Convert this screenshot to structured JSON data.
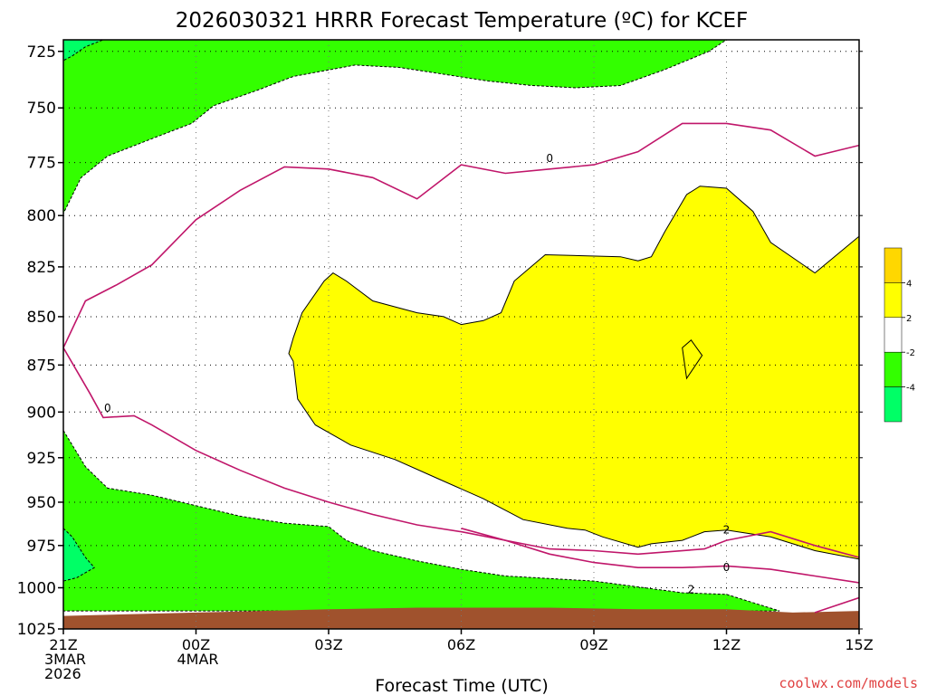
{
  "chart_data": {
    "type": "contour",
    "title": "2026030321 HRRR Forecast Temperature (ºC) for KCEF",
    "xlabel": "Forecast Time (UTC)",
    "ylabel": "",
    "credit": "coolwx.com/models",
    "y_scale": "log",
    "ylim": [
      1025,
      720
    ],
    "xlim": [
      0,
      18
    ],
    "y_ticks": [
      725,
      750,
      775,
      800,
      825,
      850,
      875,
      900,
      925,
      950,
      975,
      1000,
      1025
    ],
    "x_ticks": [
      {
        "x": 0,
        "lines": [
          "21Z",
          "3MAR",
          "2026"
        ]
      },
      {
        "x": 3,
        "lines": [
          "00Z",
          "4MAR"
        ]
      },
      {
        "x": 6,
        "lines": [
          "03Z"
        ]
      },
      {
        "x": 9,
        "lines": [
          "06Z"
        ]
      },
      {
        "x": 12,
        "lines": [
          "09Z"
        ]
      },
      {
        "x": 15,
        "lines": [
          "12Z"
        ]
      },
      {
        "x": 18,
        "lines": [
          "15Z"
        ]
      }
    ],
    "grid": true,
    "legend": {
      "placement": "right",
      "labels": [
        "4",
        "2",
        "-2",
        "-4"
      ],
      "colors": [
        "#ffd700",
        "#ffff00",
        "#ffffff",
        "#33ff00",
        "#00ff66"
      ]
    },
    "colors": {
      "cold_fill": "#33ff00",
      "colder_fill": "#00ff66",
      "warm_fill": "#ffff00",
      "ground": "#a0522d",
      "zero_line": "#c0166a"
    },
    "regions": [
      {
        "name": "cold-top",
        "fill": "#33ff00",
        "dashed": true,
        "points": [
          [
            0,
            720
          ],
          [
            15.0,
            720
          ],
          [
            14.6,
            725
          ],
          [
            13.6,
            733
          ],
          [
            12.6,
            740
          ],
          [
            11.6,
            741
          ],
          [
            10.6,
            740
          ],
          [
            9.6,
            738
          ],
          [
            8.6,
            735
          ],
          [
            7.6,
            732
          ],
          [
            6.6,
            731
          ],
          [
            5.2,
            736
          ],
          [
            4.4,
            742
          ],
          [
            3.4,
            749
          ],
          [
            2.9,
            757
          ],
          [
            2.0,
            764
          ],
          [
            1.0,
            772
          ],
          [
            0.4,
            782
          ],
          [
            0,
            799
          ]
        ]
      },
      {
        "name": "colder-top-left",
        "fill": "#00ff66",
        "dashed": true,
        "points": [
          [
            0,
            720
          ],
          [
            0.9,
            720
          ],
          [
            0.5,
            723
          ],
          [
            0.2,
            727
          ],
          [
            0,
            729
          ]
        ]
      },
      {
        "name": "warm-main",
        "fill": "#ffff00",
        "dashed": false,
        "points": [
          [
            5.2,
            861
          ],
          [
            5.4,
            848
          ],
          [
            5.9,
            832
          ],
          [
            6.1,
            828
          ],
          [
            6.4,
            832
          ],
          [
            7.0,
            842
          ],
          [
            8.0,
            848
          ],
          [
            8.6,
            850
          ],
          [
            9.0,
            854
          ],
          [
            9.5,
            852
          ],
          [
            9.9,
            848
          ],
          [
            10.2,
            832
          ],
          [
            10.9,
            819
          ],
          [
            12.6,
            820
          ],
          [
            13.0,
            822
          ],
          [
            13.3,
            820
          ],
          [
            13.6,
            808
          ],
          [
            14.1,
            790
          ],
          [
            14.4,
            786
          ],
          [
            15.0,
            787
          ],
          [
            15.6,
            798
          ],
          [
            16.0,
            813
          ],
          [
            17.0,
            828
          ],
          [
            18.0,
            810
          ],
          [
            18.0,
            983
          ],
          [
            17.0,
            978
          ],
          [
            16.0,
            970
          ],
          [
            15.0,
            966
          ],
          [
            14.5,
            967
          ],
          [
            14.0,
            972
          ],
          [
            13.3,
            974
          ],
          [
            13.0,
            976
          ],
          [
            12.2,
            970
          ],
          [
            11.8,
            966
          ],
          [
            11.4,
            965
          ],
          [
            10.4,
            960
          ],
          [
            9.5,
            948
          ],
          [
            8.5,
            937
          ],
          [
            7.5,
            926
          ],
          [
            6.5,
            918
          ],
          [
            5.7,
            907
          ],
          [
            5.3,
            893
          ],
          [
            5.2,
            873
          ],
          [
            5.1,
            869
          ]
        ]
      },
      {
        "name": "warm-pocket",
        "fill": "#ffff00",
        "dashed": false,
        "points": [
          [
            14.0,
            866
          ],
          [
            14.2,
            862
          ],
          [
            14.45,
            870
          ],
          [
            14.1,
            882
          ]
        ]
      },
      {
        "name": "cold-bottom",
        "fill": "#33ff00",
        "dashed": true,
        "points": [
          [
            0,
            910
          ],
          [
            0.5,
            930
          ],
          [
            1.0,
            942
          ],
          [
            2.0,
            946
          ],
          [
            3.0,
            952
          ],
          [
            4.0,
            958
          ],
          [
            5.0,
            962
          ],
          [
            6.0,
            964
          ],
          [
            6.4,
            972
          ],
          [
            7.0,
            978
          ],
          [
            8.0,
            984
          ],
          [
            9.0,
            989
          ],
          [
            10.0,
            993
          ],
          [
            12.0,
            996
          ],
          [
            14.0,
            1003
          ],
          [
            15.0,
            1004
          ],
          [
            16.2,
            1014
          ],
          [
            0,
            1014
          ]
        ]
      },
      {
        "name": "colder-bottom-left",
        "fill": "#00ff66",
        "dashed": true,
        "points": [
          [
            0,
            965
          ],
          [
            0.2,
            970
          ],
          [
            0.5,
            982
          ],
          [
            0.7,
            988
          ],
          [
            0.3,
            994
          ],
          [
            0,
            996
          ]
        ]
      },
      {
        "name": "ground",
        "fill": "#a0522d",
        "dashed": false,
        "points": [
          [
            0,
            1017
          ],
          [
            3.0,
            1015
          ],
          [
            6.0,
            1013
          ],
          [
            8.0,
            1012
          ],
          [
            11.0,
            1012
          ],
          [
            13.0,
            1013
          ],
          [
            15.0,
            1013
          ],
          [
            16.5,
            1015
          ],
          [
            18.0,
            1014
          ],
          [
            18.0,
            1027
          ],
          [
            0,
            1027
          ]
        ]
      }
    ],
    "lines": [
      {
        "name": "zero-isotherm-upper",
        "color": "#c0166a",
        "points": [
          [
            18.0,
            767
          ],
          [
            17.0,
            772
          ],
          [
            16.0,
            760
          ],
          [
            15.0,
            757
          ],
          [
            14.0,
            757
          ],
          [
            13.0,
            770
          ],
          [
            12.0,
            776
          ],
          [
            11.0,
            778
          ],
          [
            10.0,
            780
          ],
          [
            9.0,
            776
          ],
          [
            8.0,
            792
          ],
          [
            7.0,
            782
          ],
          [
            6.0,
            778
          ],
          [
            5.0,
            777
          ],
          [
            4.0,
            788
          ],
          [
            3.0,
            802
          ],
          [
            2.0,
            824
          ],
          [
            1.2,
            834
          ],
          [
            0.5,
            842
          ],
          [
            0.0,
            866
          ],
          [
            0.6,
            890
          ],
          [
            0.9,
            903
          ],
          [
            1.6,
            902
          ],
          [
            2.0,
            907
          ],
          [
            3.0,
            921
          ],
          [
            4.0,
            932
          ],
          [
            5.0,
            942
          ],
          [
            6.0,
            950
          ],
          [
            7.0,
            957
          ],
          [
            8.0,
            963
          ],
          [
            9.0,
            967
          ],
          [
            10.0,
            972
          ],
          [
            11.0,
            977
          ],
          [
            12.0,
            978
          ],
          [
            13.0,
            980
          ],
          [
            14.5,
            977
          ],
          [
            15.0,
            972
          ],
          [
            16.0,
            967
          ],
          [
            17.0,
            975
          ],
          [
            18.0,
            982
          ]
        ]
      },
      {
        "name": "zero-isotherm-lower",
        "color": "#c0166a",
        "points": [
          [
            18.0,
            997
          ],
          [
            17.0,
            993
          ],
          [
            16.0,
            989
          ],
          [
            15.0,
            987
          ],
          [
            14.0,
            988
          ],
          [
            13.0,
            988
          ],
          [
            12.0,
            985
          ],
          [
            11.0,
            980
          ],
          [
            10.0,
            972
          ],
          [
            9.0,
            965
          ]
        ]
      },
      {
        "name": "zero-isotherm-ground",
        "color": "#c0166a",
        "points": [
          [
            17.0,
            1015
          ],
          [
            18.0,
            1006
          ]
        ]
      }
    ],
    "contour_labels": [
      {
        "text": "0",
        "x": 11.0,
        "y": 773
      },
      {
        "text": "0",
        "x": 1.0,
        "y": 898
      },
      {
        "text": "2",
        "x": 15.0,
        "y": 966
      },
      {
        "text": "0",
        "x": 15.0,
        "y": 988
      },
      {
        "text": "2",
        "x": 14.2,
        "y": 1001
      }
    ]
  }
}
